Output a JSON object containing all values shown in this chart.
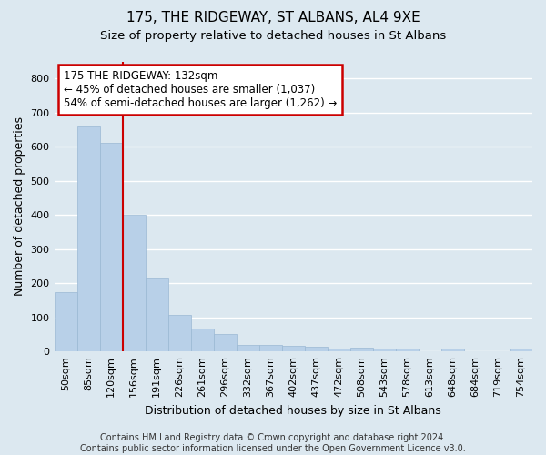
{
  "title1": "175, THE RIDGEWAY, ST ALBANS, AL4 9XE",
  "title2": "Size of property relative to detached houses in St Albans",
  "xlabel": "Distribution of detached houses by size in St Albans",
  "ylabel": "Number of detached properties",
  "categories": [
    "50sqm",
    "85sqm",
    "120sqm",
    "156sqm",
    "191sqm",
    "226sqm",
    "261sqm",
    "296sqm",
    "332sqm",
    "367sqm",
    "402sqm",
    "437sqm",
    "472sqm",
    "508sqm",
    "543sqm",
    "578sqm",
    "613sqm",
    "648sqm",
    "684sqm",
    "719sqm",
    "754sqm"
  ],
  "values": [
    175,
    660,
    610,
    400,
    215,
    107,
    67,
    50,
    20,
    18,
    17,
    13,
    8,
    10,
    8,
    8,
    0,
    8,
    0,
    0,
    8
  ],
  "bar_color": "#b8d0e8",
  "bar_edge_color": "#9ab8d4",
  "red_line_x": 2.5,
  "annotation_text": "175 THE RIDGEWAY: 132sqm\n← 45% of detached houses are smaller (1,037)\n54% of semi-detached houses are larger (1,262) →",
  "annotation_box_facecolor": "#ffffff",
  "annotation_box_edgecolor": "#cc0000",
  "footer_text": "Contains HM Land Registry data © Crown copyright and database right 2024.\nContains public sector information licensed under the Open Government Licence v3.0.",
  "ylim": [
    0,
    850
  ],
  "yticks": [
    0,
    100,
    200,
    300,
    400,
    500,
    600,
    700,
    800
  ],
  "plot_bg_color": "#dce8f0",
  "fig_bg_color": "#dce8f0",
  "grid_color": "#ffffff",
  "title1_fontsize": 11,
  "title2_fontsize": 9.5,
  "xlabel_fontsize": 9,
  "ylabel_fontsize": 9,
  "tick_fontsize": 8,
  "annotation_fontsize": 8.5,
  "footer_fontsize": 7
}
